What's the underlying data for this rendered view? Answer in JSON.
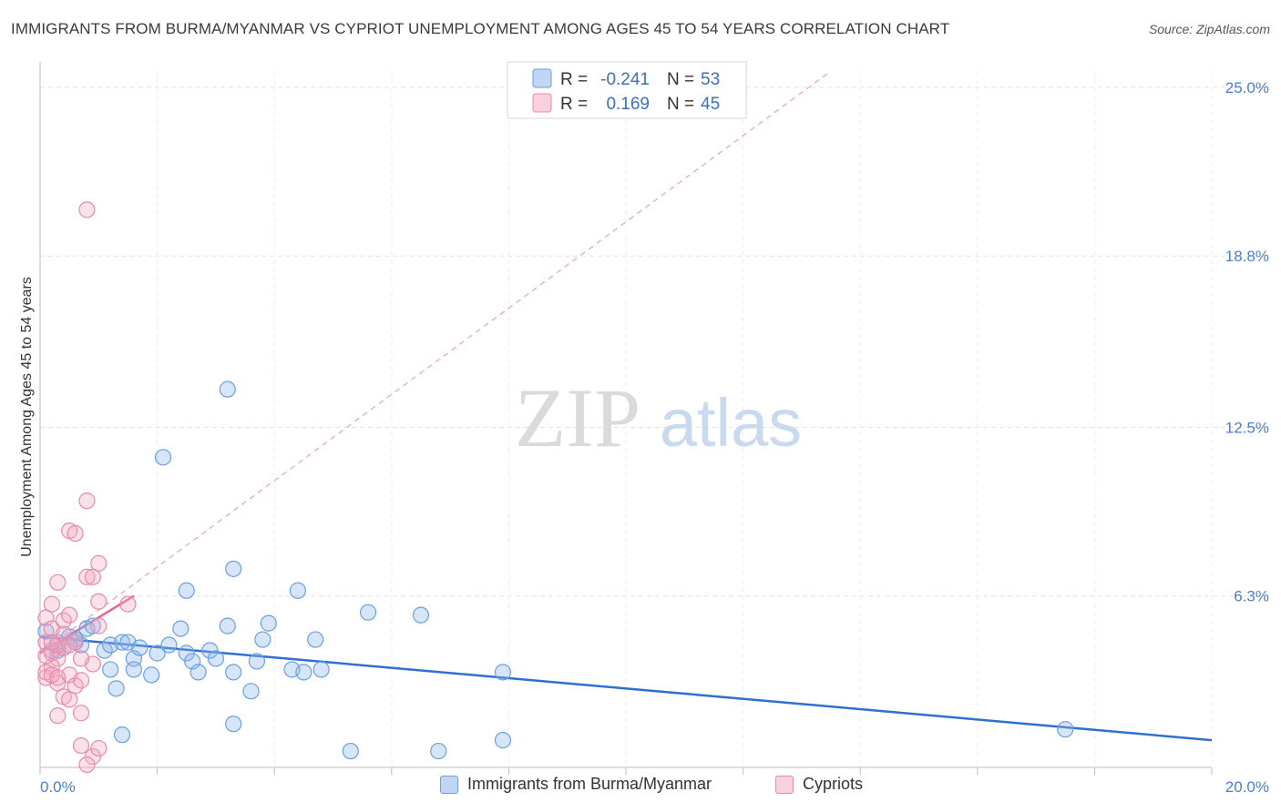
{
  "title": "IMMIGRANTS FROM BURMA/MYANMAR VS CYPRIOT UNEMPLOYMENT AMONG AGES 45 TO 54 YEARS CORRELATION CHART",
  "source": "Source: ZipAtlas.com",
  "watermark": {
    "zip": "ZIP",
    "atlas": "atlas"
  },
  "legend": {
    "r_label": "R =",
    "n_label": "N =",
    "rows": [
      {
        "r": "-0.241",
        "n": "53"
      },
      {
        "r": "0.169",
        "n": "45"
      }
    ]
  },
  "chart_data": {
    "type": "scatter",
    "title": "IMMIGRANTS FROM BURMA/MYANMAR VS CYPRIOT UNEMPLOYMENT AMONG AGES 45 TO 54 YEARS CORRELATION CHART",
    "xlabel": "",
    "ylabel": "Unemployment Among Ages 45 to 54 years",
    "xlim": [
      0,
      20
    ],
    "ylim": [
      0,
      25.6
    ],
    "x_tick_labels": [
      "0.0%",
      "20.0%"
    ],
    "y_ticks": [
      {
        "value": 25.0,
        "label": "25.0%"
      },
      {
        "value": 18.8,
        "label": "18.8%"
      },
      {
        "value": 12.5,
        "label": "12.5%"
      },
      {
        "value": 6.3,
        "label": "6.3%"
      }
    ],
    "grid": true,
    "series": [
      {
        "name": "Immigrants from Burma/Myanmar",
        "color": "#6a9fe0",
        "fill": "rgba(140,180,235,0.35)",
        "r": -0.241,
        "n": 53,
        "trend": {
          "x0": 0.0,
          "y0": 4.8,
          "x1": 20.0,
          "y1": 1.0
        },
        "points": [
          [
            0.1,
            5.0
          ],
          [
            0.2,
            4.3
          ],
          [
            0.3,
            4.6
          ],
          [
            0.4,
            4.4
          ],
          [
            0.5,
            4.8
          ],
          [
            0.6,
            4.7
          ],
          [
            0.7,
            4.5
          ],
          [
            0.8,
            5.1
          ],
          [
            0.9,
            5.2
          ],
          [
            1.1,
            4.3
          ],
          [
            1.2,
            4.5
          ],
          [
            1.3,
            2.9
          ],
          [
            1.4,
            4.6
          ],
          [
            1.5,
            4.6
          ],
          [
            1.6,
            4.0
          ],
          [
            1.7,
            4.4
          ],
          [
            1.9,
            3.4
          ],
          [
            2.0,
            4.2
          ],
          [
            2.2,
            4.5
          ],
          [
            2.4,
            5.1
          ],
          [
            2.5,
            4.2
          ],
          [
            2.6,
            3.9
          ],
          [
            2.7,
            3.5
          ],
          [
            2.9,
            4.3
          ],
          [
            3.0,
            4.0
          ],
          [
            3.2,
            5.2
          ],
          [
            3.3,
            3.5
          ],
          [
            3.7,
            3.9
          ],
          [
            3.8,
            4.7
          ],
          [
            3.9,
            5.3
          ],
          [
            3.6,
            2.8
          ],
          [
            4.3,
            3.6
          ],
          [
            4.5,
            3.5
          ],
          [
            4.7,
            4.7
          ],
          [
            4.8,
            3.6
          ],
          [
            5.6,
            5.7
          ],
          [
            6.5,
            5.6
          ],
          [
            7.9,
            3.5
          ],
          [
            5.3,
            0.6
          ],
          [
            6.8,
            0.6
          ],
          [
            7.9,
            1.0
          ],
          [
            1.4,
            1.2
          ],
          [
            3.3,
            1.6
          ],
          [
            2.5,
            6.5
          ],
          [
            3.3,
            7.3
          ],
          [
            4.4,
            6.5
          ],
          [
            2.1,
            11.4
          ],
          [
            3.2,
            13.9
          ],
          [
            17.5,
            1.4
          ],
          [
            1.2,
            3.6
          ],
          [
            1.6,
            3.6
          ],
          [
            0.3,
            4.3
          ],
          [
            0.6,
            4.6
          ]
        ]
      },
      {
        "name": "Cypriots",
        "color": "#e88aa8",
        "fill": "rgba(244,170,195,0.35)",
        "r": 0.169,
        "n": 45,
        "trend": {
          "x0": 0.0,
          "y0": 4.2,
          "x1": 1.6,
          "y1": 6.3
        },
        "trend_extended": {
          "x0": 0.0,
          "y0": 4.2,
          "x1": 13.5,
          "y1": 25.6
        },
        "points": [
          [
            0.1,
            5.5
          ],
          [
            0.2,
            6.0
          ],
          [
            0.3,
            6.8
          ],
          [
            0.4,
            5.4
          ],
          [
            0.5,
            5.6
          ],
          [
            0.1,
            4.6
          ],
          [
            0.2,
            4.2
          ],
          [
            0.3,
            4.0
          ],
          [
            0.4,
            4.4
          ],
          [
            0.2,
            3.7
          ],
          [
            0.1,
            3.3
          ],
          [
            0.3,
            3.1
          ],
          [
            0.5,
            3.4
          ],
          [
            0.6,
            3.0
          ],
          [
            0.7,
            3.2
          ],
          [
            0.4,
            2.6
          ],
          [
            0.5,
            2.5
          ],
          [
            0.3,
            1.9
          ],
          [
            0.7,
            2.0
          ],
          [
            0.7,
            0.8
          ],
          [
            0.9,
            0.4
          ],
          [
            1.0,
            0.7
          ],
          [
            0.8,
            0.1
          ],
          [
            0.8,
            7.0
          ],
          [
            0.9,
            7.0
          ],
          [
            1.0,
            7.5
          ],
          [
            0.5,
            8.7
          ],
          [
            0.8,
            9.8
          ],
          [
            1.5,
            6.0
          ],
          [
            1.0,
            6.1
          ],
          [
            1.0,
            5.2
          ],
          [
            0.9,
            3.8
          ],
          [
            0.7,
            4.0
          ],
          [
            0.2,
            5.1
          ],
          [
            0.3,
            4.5
          ],
          [
            0.1,
            4.1
          ],
          [
            0.1,
            3.5
          ],
          [
            0.2,
            3.4
          ],
          [
            0.6,
            4.6
          ],
          [
            0.4,
            4.9
          ],
          [
            0.8,
            20.5
          ],
          [
            0.6,
            8.6
          ],
          [
            0.2,
            4.6
          ],
          [
            0.3,
            3.3
          ],
          [
            0.5,
            4.5
          ]
        ]
      }
    ]
  }
}
